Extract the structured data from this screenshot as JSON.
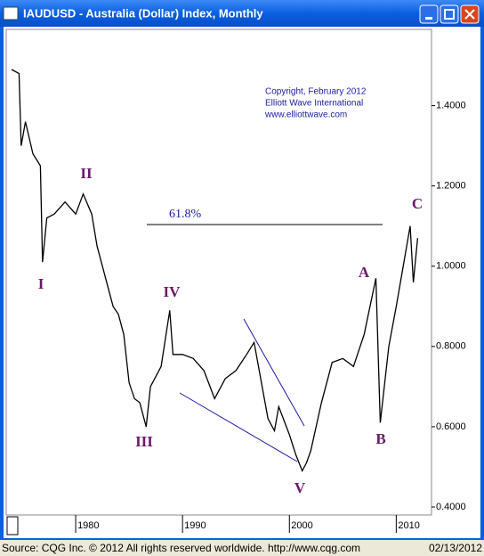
{
  "chart_data": {
    "type": "line",
    "title": "IAUDUSD - Australia (Dollar) Index, Monthly",
    "copyright": [
      "Copyright, February 2012",
      "Elliott Wave International",
      "www.elliottwave.com"
    ],
    "footer_source": "Source: CQG Inc. © 2012 All rights reserved worldwide. http://www.cqg.com",
    "footer_date": "02/13/2012",
    "fib_label": "61.8%",
    "wave_labels": [
      "I",
      "II",
      "III",
      "IV",
      "V",
      "A",
      "B",
      "C"
    ],
    "series": [
      {
        "name": "IAUDUSD",
        "color": "#000000",
        "x": [
          1974.0,
          1974.7,
          1974.9,
          1975.3,
          1976.0,
          1976.7,
          1976.9,
          1977.3,
          1978.0,
          1979.0,
          1980.0,
          1980.7,
          1981.5,
          1982.0,
          1983.0,
          1983.5,
          1984.0,
          1984.5,
          1985.0,
          1985.5,
          1986.0,
          1986.6,
          1987.0,
          1988.0,
          1988.8,
          1989.1,
          1990.0,
          1991.0,
          1992.0,
          1993.0,
          1994.0,
          1995.0,
          1996.0,
          1996.7,
          1998.0,
          1998.6,
          1999.0,
          2000.0,
          2000.6,
          2001.2,
          2001.6,
          2002.0,
          2003.0,
          2004.0,
          2005.0,
          2006.0,
          2007.0,
          2008.1,
          2008.5,
          2009.3,
          2010.0,
          2011.3,
          2011.6,
          2012.0
        ],
        "values": [
          1.49,
          1.48,
          1.3,
          1.36,
          1.28,
          1.25,
          1.01,
          1.12,
          1.13,
          1.16,
          1.13,
          1.18,
          1.13,
          1.05,
          0.95,
          0.9,
          0.88,
          0.83,
          0.71,
          0.67,
          0.66,
          0.6,
          0.7,
          0.75,
          0.89,
          0.78,
          0.78,
          0.77,
          0.74,
          0.67,
          0.72,
          0.74,
          0.78,
          0.81,
          0.62,
          0.59,
          0.65,
          0.58,
          0.53,
          0.49,
          0.51,
          0.54,
          0.66,
          0.76,
          0.77,
          0.75,
          0.83,
          0.97,
          0.61,
          0.8,
          0.9,
          1.1,
          0.96,
          1.07
        ]
      }
    ],
    "xlim": [
      1973.5,
      2013.3
    ],
    "xticks": [
      1980,
      1990,
      2000,
      2010
    ],
    "ylim": [
      0.38,
      1.59
    ],
    "yticks": [
      {
        "value": 0.4,
        "label": "0.4000"
      },
      {
        "value": 0.6,
        "label": "0.6000"
      },
      {
        "value": 0.8,
        "label": "0.8000"
      },
      {
        "value": 1.0,
        "label": "1.0000"
      },
      {
        "value": 1.2,
        "label": "1.2000"
      },
      {
        "value": 1.4,
        "label": "1.4000"
      }
    ]
  }
}
